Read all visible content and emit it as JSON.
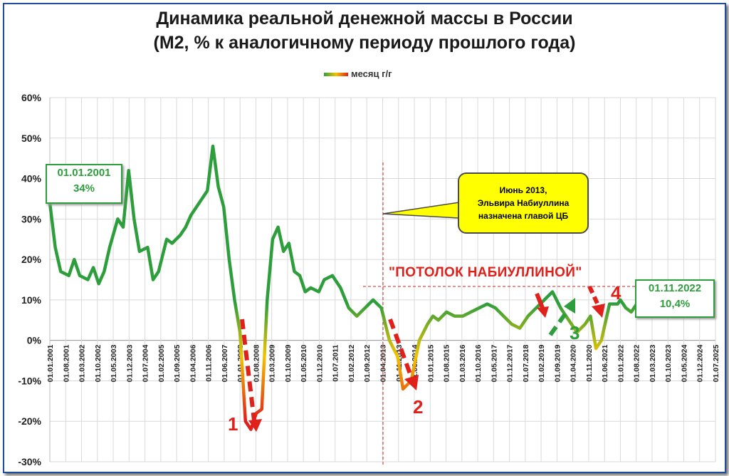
{
  "chart_data": {
    "type": "line",
    "title": "Динамика реальной денежной массы в России",
    "subtitle": "(М2, % к аналогичному периоду прошлого года)",
    "legend": "месяц г/г",
    "legend_placement": "top-center",
    "ylim": [
      -30,
      60
    ],
    "yticks": [
      "60%",
      "50%",
      "40%",
      "30%",
      "20%",
      "10%",
      "0%",
      "-10%",
      "-20%",
      "-30%"
    ],
    "grid": true,
    "xticks": [
      "01.01.2001",
      "01.08.2001",
      "01.03.2002",
      "01.10.2002",
      "01.05.2003",
      "01.12.2003",
      "01.07.2004",
      "01.02.2005",
      "01.09.2005",
      "01.04.2006",
      "01.11.2006",
      "01.06.2007",
      "01.01.2008",
      "01.08.2008",
      "01.03.2009",
      "01.10.2009",
      "01.05.2010",
      "01.12.2010",
      "01.07.2011",
      "01.02.2012",
      "01.09.2012",
      "01.04.2013",
      "01.11.2013",
      "01.06.2014",
      "01.01.2015",
      "01.08.2015",
      "01.03.2016",
      "01.10.2016",
      "01.05.2017",
      "01.12.2017",
      "01.07.2018",
      "01.02.2019",
      "01.09.2019",
      "01.04.2020",
      "01.11.2020",
      "01.06.2021",
      "01.01.2022",
      "01.08.2022",
      "01.03.2023",
      "01.10.2023",
      "01.05.2024",
      "01.12.2024",
      "01.07.2025"
    ],
    "series": [
      {
        "name": "месяц г/г",
        "x": [
          2001.0,
          2001.2,
          2001.4,
          2001.7,
          2001.9,
          2002.1,
          2002.4,
          2002.6,
          2002.8,
          2003.0,
          2003.2,
          2003.5,
          2003.7,
          2003.9,
          2004.1,
          2004.3,
          2004.6,
          2004.8,
          2005.0,
          2005.3,
          2005.5,
          2005.8,
          2006.0,
          2006.2,
          2006.5,
          2006.8,
          2007.0,
          2007.2,
          2007.4,
          2007.6,
          2007.8,
          2008.0,
          2008.2,
          2008.4,
          2008.6,
          2008.8,
          2009.0,
          2009.2,
          2009.4,
          2009.6,
          2009.8,
          2010.0,
          2010.2,
          2010.4,
          2010.6,
          2010.9,
          2011.1,
          2011.4,
          2011.7,
          2012.0,
          2012.3,
          2012.6,
          2012.9,
          2013.2,
          2013.5,
          2013.8,
          2014.0,
          2014.3,
          2014.6,
          2014.9,
          2015.1,
          2015.3,
          2015.6,
          2015.9,
          2016.2,
          2016.5,
          2016.8,
          2017.1,
          2017.4,
          2017.7,
          2018.0,
          2018.3,
          2018.6,
          2018.9,
          2019.2,
          2019.5,
          2019.8,
          2020.1,
          2020.4,
          2020.7,
          2020.9,
          2021.1,
          2021.3,
          2021.6,
          2021.9,
          2022.0,
          2022.2,
          2022.4,
          2022.6,
          2022.8
        ],
        "values": [
          34,
          23,
          17,
          16,
          20,
          16,
          15,
          18,
          14,
          17,
          23,
          30,
          28,
          42,
          30,
          22,
          23,
          15,
          17,
          25,
          24,
          26,
          28,
          31,
          34,
          37,
          48,
          38,
          33,
          20,
          10,
          2,
          -20,
          -22,
          -18,
          -17,
          10,
          25,
          28,
          22,
          24,
          17,
          16,
          12,
          13,
          12,
          15,
          16,
          13,
          8,
          6,
          8,
          10,
          8,
          0,
          -4,
          -12,
          -10,
          0,
          4,
          6,
          5,
          7,
          6,
          6,
          7,
          8,
          9,
          8,
          6,
          4,
          3,
          6,
          8,
          10,
          12,
          8,
          5,
          2,
          4,
          6,
          -2,
          0,
          9,
          9,
          10,
          8,
          7,
          9,
          10.4
        ]
      }
    ],
    "annotations": {
      "start_label": {
        "date": "01.01.2001",
        "value": "34%"
      },
      "end_label": {
        "date": "01.11.2022",
        "value": "10,4%"
      },
      "callout_lines": [
        "Июнь 2013,",
        "Эльвира Набиуллина",
        "назначена главой ЦБ"
      ],
      "ceiling_label": "\"ПОТОЛОК НАБИУЛЛИНОЙ\"",
      "markers": [
        "1",
        "2",
        "3",
        "4"
      ]
    }
  }
}
